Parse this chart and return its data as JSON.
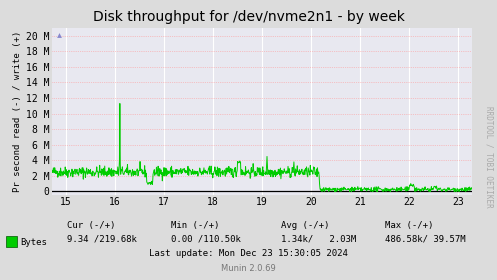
{
  "title": "Disk throughput for /dev/nvme2n1 - by week",
  "ylabel": "Pr second read (-) / write (+)",
  "xlabel_ticks": [
    15,
    16,
    17,
    18,
    19,
    20,
    21,
    22,
    23
  ],
  "ytick_labels": [
    "0",
    "2 M",
    "4 M",
    "6 M",
    "8 M",
    "10 M",
    "12 M",
    "14 M",
    "16 M",
    "18 M",
    "20 M"
  ],
  "ytick_values": [
    0,
    2000000,
    4000000,
    6000000,
    8000000,
    10000000,
    12000000,
    14000000,
    16000000,
    18000000,
    20000000
  ],
  "xmin": 14.72,
  "xmax": 23.28,
  "ymin": -400000,
  "ymax": 21000000,
  "line_color": "#00CC00",
  "bg_color": "#DCDCDC",
  "plot_bg_color": "#E8E8F0",
  "grid_v_color": "#FFFFFF",
  "grid_h_color": "#FF9999",
  "zero_line_color": "#000000",
  "legend_label": "Bytes",
  "legend_color": "#00CC00",
  "footer_row1": "Cur (-/+)           Min (-/+)           Avg (-/+)           Max (-/+)",
  "footer_row2": "  9.34 /219.68k       0.00 /110.50k       1.34k/   2.03M     486.58k/ 39.57M",
  "footer_update": "Last update: Mon Dec 23 15:30:05 2024",
  "footer_munin": "Munin 2.0.69",
  "watermark": "RRDTOOL / TOBI OETIKER",
  "title_fontsize": 10,
  "axis_fontsize": 7,
  "footer_fontsize": 6.5,
  "watermark_fontsize": 5.5
}
